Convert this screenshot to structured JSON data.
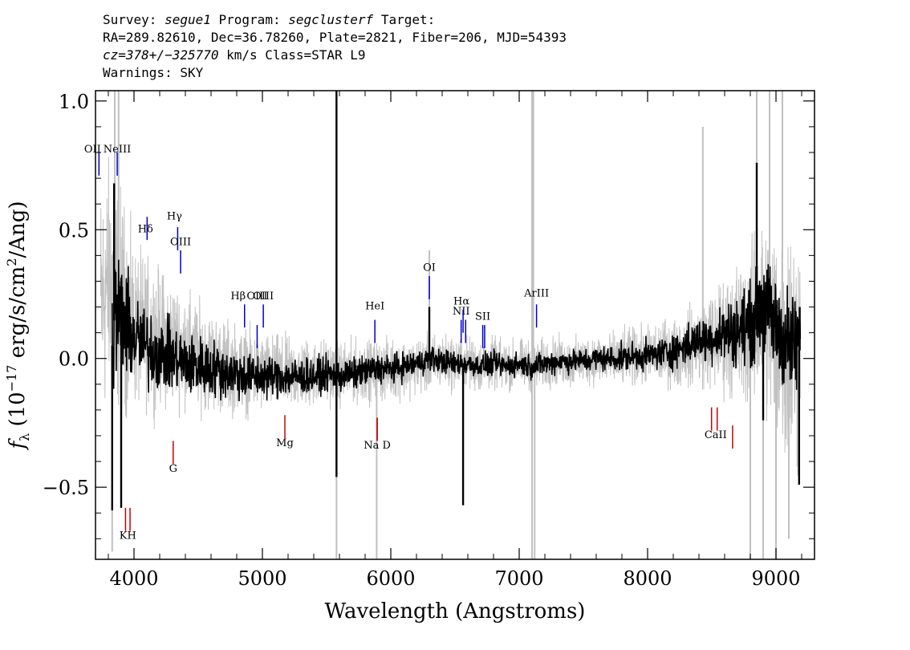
{
  "header": {
    "survey_label": "Survey:",
    "survey": "segue1",
    "program_label": "Program:",
    "program": "segclusterf",
    "target_label": "Target:",
    "line2": "RA=289.82610, Dec=36.78260, Plate=2821, Fiber=206, MJD=54393",
    "cz": "cz=378+/−325770",
    "cz_rest": " km/s Class=STAR L9",
    "warnings": "Warnings: SKY"
  },
  "chart_data": {
    "type": "line",
    "xlabel": "Wavelength (Angstroms)",
    "ylabel": "fλ (10⁻¹⁷ erg/s/cm²/Ang)",
    "xlim": [
      3700,
      9300
    ],
    "ylim": [
      -0.78,
      1.04
    ],
    "x_ticks": [
      4000,
      5000,
      6000,
      7000,
      8000,
      9000
    ],
    "x_tick_labels": [
      "4000",
      "5000",
      "6000",
      "7000",
      "8000",
      "9000"
    ],
    "y_ticks": [
      -0.5,
      0.0,
      0.5,
      1.0
    ],
    "y_tick_labels": [
      "−0.5",
      "0.0",
      "0.5",
      "1.0"
    ],
    "grid": false,
    "series": [
      {
        "color": "#c0c0c0",
        "style": "noise",
        "points": [
          [
            3740,
            0.2
          ],
          [
            3800,
            0.3
          ],
          [
            3850,
            0.28
          ],
          [
            3900,
            0.22
          ],
          [
            4000,
            0.12
          ],
          [
            4100,
            0.1
          ],
          [
            4200,
            0.08
          ],
          [
            4300,
            0.06
          ],
          [
            4400,
            0.04
          ],
          [
            4500,
            0.01
          ],
          [
            4600,
            -0.01
          ],
          [
            4700,
            -0.03
          ],
          [
            4800,
            -0.04
          ],
          [
            4900,
            -0.05
          ],
          [
            5000,
            -0.06
          ],
          [
            5100,
            -0.06
          ],
          [
            5200,
            -0.06
          ],
          [
            5300,
            -0.06
          ],
          [
            5400,
            -0.06
          ],
          [
            5500,
            -0.05
          ],
          [
            5600,
            -0.06
          ],
          [
            5700,
            -0.05
          ],
          [
            5800,
            -0.05
          ],
          [
            5900,
            -0.05
          ],
          [
            6000,
            -0.04
          ],
          [
            6100,
            -0.04
          ],
          [
            6200,
            -0.03
          ],
          [
            6300,
            -0.02
          ],
          [
            6400,
            -0.01
          ],
          [
            6500,
            -0.02
          ],
          [
            6600,
            -0.02
          ],
          [
            6700,
            -0.03
          ],
          [
            6800,
            -0.02
          ],
          [
            6900,
            -0.03
          ],
          [
            7000,
            -0.02
          ],
          [
            7100,
            -0.03
          ],
          [
            7200,
            -0.02
          ],
          [
            7300,
            -0.01
          ],
          [
            7400,
            -0.02
          ],
          [
            7500,
            -0.01
          ],
          [
            7600,
            0.0
          ],
          [
            7700,
            -0.01
          ],
          [
            7800,
            0.0
          ],
          [
            7900,
            0.01
          ],
          [
            8000,
            0.01
          ],
          [
            8100,
            0.02
          ],
          [
            8200,
            0.02
          ],
          [
            8300,
            0.04
          ],
          [
            8400,
            0.06
          ],
          [
            8500,
            0.07
          ],
          [
            8600,
            0.09
          ],
          [
            8700,
            0.1
          ],
          [
            8800,
            0.12
          ],
          [
            8900,
            0.18
          ],
          [
            9000,
            0.1
          ],
          [
            9100,
            0.06
          ],
          [
            9190,
            0.02
          ]
        ],
        "spread": [
          [
            3740,
            0.5
          ],
          [
            3900,
            0.45
          ],
          [
            4000,
            0.32
          ],
          [
            4300,
            0.25
          ],
          [
            4600,
            0.2
          ],
          [
            5000,
            0.16
          ],
          [
            5500,
            0.13
          ],
          [
            6000,
            0.12
          ],
          [
            6500,
            0.11
          ],
          [
            7000,
            0.1
          ],
          [
            7500,
            0.1
          ],
          [
            8000,
            0.12
          ],
          [
            8300,
            0.15
          ],
          [
            8500,
            0.2
          ],
          [
            8800,
            0.32
          ],
          [
            9000,
            0.45
          ],
          [
            9190,
            0.55
          ]
        ],
        "spikes": [
          [
            3830,
            -0.75
          ],
          [
            3850,
            1.04
          ],
          [
            3880,
            1.04
          ],
          [
            5577,
            -0.78
          ],
          [
            5577,
            1.04
          ],
          [
            5890,
            -0.78
          ],
          [
            6300,
            0.42
          ],
          [
            7100,
            -0.78
          ],
          [
            7100,
            1.04
          ],
          [
            7110,
            1.04
          ],
          [
            7120,
            -0.78
          ],
          [
            8430,
            0.9
          ],
          [
            8800,
            -0.78
          ],
          [
            8850,
            1.04
          ],
          [
            8900,
            -0.78
          ],
          [
            8950,
            1.04
          ],
          [
            9000,
            -0.78
          ],
          [
            9050,
            1.04
          ],
          [
            9100,
            -0.7
          ]
        ]
      },
      {
        "color": "#000000",
        "style": "noise",
        "points": [
          [
            3830,
            0.05
          ],
          [
            3850,
            0.18
          ],
          [
            3900,
            0.15
          ],
          [
            4000,
            0.08
          ],
          [
            4100,
            0.04
          ],
          [
            4200,
            0.02
          ],
          [
            4300,
            0.0
          ],
          [
            4400,
            -0.02
          ],
          [
            4500,
            -0.03
          ],
          [
            4600,
            -0.04
          ],
          [
            4700,
            -0.05
          ],
          [
            4800,
            -0.06
          ],
          [
            4900,
            -0.07
          ],
          [
            5000,
            -0.07
          ],
          [
            5100,
            -0.07
          ],
          [
            5200,
            -0.07
          ],
          [
            5300,
            -0.07
          ],
          [
            5400,
            -0.07
          ],
          [
            5500,
            -0.06
          ],
          [
            5600,
            -0.07
          ],
          [
            5700,
            -0.06
          ],
          [
            5800,
            -0.05
          ],
          [
            5900,
            -0.04
          ],
          [
            6000,
            -0.04
          ],
          [
            6100,
            -0.03
          ],
          [
            6200,
            -0.02
          ],
          [
            6300,
            0.0
          ],
          [
            6400,
            -0.01
          ],
          [
            6500,
            -0.02
          ],
          [
            6600,
            -0.02
          ],
          [
            6700,
            -0.03
          ],
          [
            6800,
            -0.02
          ],
          [
            6900,
            -0.03
          ],
          [
            7000,
            -0.02
          ],
          [
            7100,
            -0.03
          ],
          [
            7200,
            -0.02
          ],
          [
            7300,
            -0.01
          ],
          [
            7400,
            -0.01
          ],
          [
            7500,
            -0.01
          ],
          [
            7600,
            0.0
          ],
          [
            7700,
            0.0
          ],
          [
            7800,
            0.0
          ],
          [
            7900,
            0.01
          ],
          [
            8000,
            0.01
          ],
          [
            8100,
            0.02
          ],
          [
            8200,
            0.03
          ],
          [
            8300,
            0.05
          ],
          [
            8400,
            0.07
          ],
          [
            8500,
            0.08
          ],
          [
            8600,
            0.1
          ],
          [
            8700,
            0.11
          ],
          [
            8800,
            0.13
          ],
          [
            8900,
            0.22
          ],
          [
            9000,
            0.12
          ],
          [
            9100,
            0.06
          ],
          [
            9190,
            0.03
          ]
        ],
        "spread": [
          [
            3830,
            0.3
          ],
          [
            3900,
            0.26
          ],
          [
            4000,
            0.18
          ],
          [
            4300,
            0.14
          ],
          [
            4600,
            0.12
          ],
          [
            5000,
            0.09
          ],
          [
            5500,
            0.07
          ],
          [
            6000,
            0.06
          ],
          [
            6500,
            0.05
          ],
          [
            7000,
            0.05
          ],
          [
            7500,
            0.05
          ],
          [
            8000,
            0.06
          ],
          [
            8300,
            0.08
          ],
          [
            8500,
            0.1
          ],
          [
            8800,
            0.17
          ],
          [
            9000,
            0.22
          ],
          [
            9190,
            0.22
          ]
        ],
        "spikes": [
          [
            3830,
            -0.59
          ],
          [
            3845,
            0.68
          ],
          [
            3900,
            -0.58
          ],
          [
            5577,
            1.04
          ],
          [
            5577,
            -0.46
          ],
          [
            6300,
            0.2
          ],
          [
            6563,
            -0.57
          ],
          [
            8850,
            0.76
          ],
          [
            8900,
            -0.24
          ],
          [
            9180,
            -0.49
          ],
          [
            9185,
            0.2
          ]
        ]
      }
    ],
    "emission_lines": [
      {
        "label": "OII",
        "x": 3727,
        "y_label": 0.8,
        "y1": 0.71,
        "y2": 0.8,
        "color": "#0000c8"
      },
      {
        "label": "NeIII",
        "x": 3869,
        "y_label": 0.8,
        "y1": 0.71,
        "y2": 0.8,
        "color": "#0000c8"
      },
      {
        "label": "Hδ",
        "x": 4102,
        "y_label": 0.49,
        "y1": 0.46,
        "y2": 0.55,
        "color": "#0000c8"
      },
      {
        "label": "Hγ",
        "x": 4340,
        "y_label": 0.54,
        "y1": 0.42,
        "y2": 0.51,
        "color": "#0000c8"
      },
      {
        "label": "OIII",
        "x": 4363,
        "y_label": 0.44,
        "y1": 0.33,
        "y2": 0.42,
        "color": "#0000c8"
      },
      {
        "label": "Hβ",
        "x": 4861,
        "y_label": 0.23,
        "y1": 0.12,
        "y2": 0.21,
        "color": "#0000c8"
      },
      {
        "label": "OIII",
        "x": 4959,
        "y_label": 0.23,
        "y1": 0.04,
        "y2": 0.13,
        "color": "#0000c8"
      },
      {
        "label": "OIII",
        "x": 5007,
        "y_label": 0.23,
        "y1": 0.12,
        "y2": 0.21,
        "color": "#0000c8"
      },
      {
        "label": "HeI",
        "x": 5876,
        "y_label": 0.19,
        "y1": 0.06,
        "y2": 0.15,
        "color": "#0000c8"
      },
      {
        "label": "OI",
        "x": 6300,
        "y_label": 0.34,
        "y1": 0.23,
        "y2": 0.32,
        "color": "#0000c8"
      },
      {
        "label": "NII",
        "x": 6548,
        "y_label": 0.17,
        "y1": 0.06,
        "y2": 0.15,
        "color": "#0000c8"
      },
      {
        "label": "Hα",
        "x": 6563,
        "y_label": 0.21,
        "y1": 0.1,
        "y2": 0.19,
        "color": "#0000c8"
      },
      {
        "label": "NII",
        "x": 6583,
        "y_label": 0.17,
        "y1": 0.06,
        "y2": 0.15,
        "color": "#0000c8"
      },
      {
        "label": "SII",
        "x": 6716,
        "y_label": 0.15,
        "y1": 0.04,
        "y2": 0.13,
        "color": "#0000c8"
      },
      {
        "label": "SII",
        "x": 6731,
        "y_label": 0.15,
        "y1": 0.04,
        "y2": 0.13,
        "color": "#0000c8"
      },
      {
        "label": "ArIII",
        "x": 7135,
        "y_label": 0.24,
        "y1": 0.12,
        "y2": 0.21,
        "color": "#0000c8"
      }
    ],
    "absorption_lines": [
      {
        "label": "K",
        "x": 3934,
        "y_label": -0.7,
        "y1": -0.67,
        "y2": -0.58,
        "color": "#c80000"
      },
      {
        "label": "H",
        "x": 3969,
        "y_label": -0.7,
        "y1": -0.67,
        "y2": -0.58,
        "color": "#c80000"
      },
      {
        "label": "G",
        "x": 4305,
        "y_label": -0.44,
        "y1": -0.41,
        "y2": -0.32,
        "color": "#c80000"
      },
      {
        "label": "Mg",
        "x": 5175,
        "y_label": -0.34,
        "y1": -0.31,
        "y2": -0.22,
        "color": "#c80000"
      },
      {
        "label": "Na",
        "x": 5894,
        "y_label": -0.35,
        "y1": -0.32,
        "y2": -0.23,
        "color": "#c80000"
      },
      {
        "label": "D",
        "x": 5894,
        "y_label": -0.35,
        "y1": -0.32,
        "y2": -0.23,
        "color": "#c80000"
      },
      {
        "label": "CaII",
        "x": 8498,
        "y_label": -0.31,
        "y1": -0.28,
        "y2": -0.19,
        "color": "#c80000"
      },
      {
        "label": "CaII",
        "x": 8542,
        "y_label": -0.31,
        "y1": -0.28,
        "y2": -0.19,
        "color": "#c80000"
      },
      {
        "label": "CaII",
        "x": 8662,
        "y_label": -0.31,
        "y1": -0.35,
        "y2": -0.26,
        "color": "#c80000"
      }
    ],
    "label_strings": {
      "na_d": "Na  D",
      "kh": "KH",
      "caii": "CaII",
      "oii_trunc": "OII"
    }
  }
}
